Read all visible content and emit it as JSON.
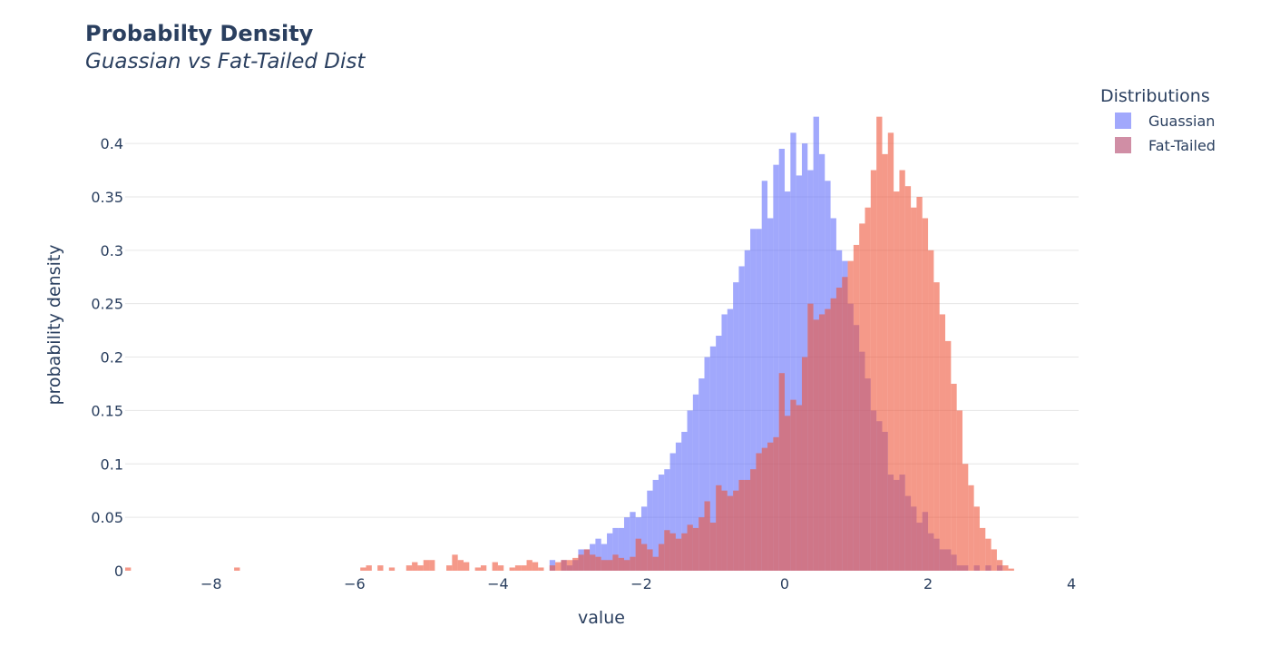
{
  "chart_data": {
    "type": "bar",
    "subtype": "overlaid-histogram",
    "title": "Probabilty Density",
    "subtitle": "Guassian vs Fat-Tailed Dist",
    "xlabel": "value",
    "ylabel": "probability density",
    "xlim": [
      -9.2,
      4.1
    ],
    "ylim": [
      0,
      0.44
    ],
    "grid": true,
    "bin_width": 0.08,
    "x_ticks": [
      -8,
      -6,
      -4,
      -2,
      0,
      2,
      4
    ],
    "x_tick_labels": [
      "−8",
      "−6",
      "−4",
      "−2",
      "0",
      "2",
      "4"
    ],
    "y_ticks": [
      0,
      0.05,
      0.1,
      0.15,
      0.2,
      0.25,
      0.3,
      0.35,
      0.4
    ],
    "y_tick_labels": [
      "0",
      "0.05",
      "0.1",
      "0.15",
      "0.2",
      "0.25",
      "0.3",
      "0.35",
      "0.4"
    ],
    "legend": {
      "title": "Distributions",
      "position": "top-right",
      "entries": [
        "Guassian",
        "Fat-Tailed"
      ]
    },
    "series": [
      {
        "name": "Guassian",
        "color": "#636efa",
        "opacity": 0.6,
        "x_start": -3.28,
        "values": [
          0.01,
          0.0,
          0.01,
          0.005,
          0.01,
          0.02,
          0.02,
          0.025,
          0.03,
          0.025,
          0.035,
          0.04,
          0.04,
          0.05,
          0.055,
          0.05,
          0.06,
          0.075,
          0.085,
          0.09,
          0.095,
          0.11,
          0.12,
          0.13,
          0.15,
          0.165,
          0.18,
          0.2,
          0.21,
          0.22,
          0.24,
          0.245,
          0.27,
          0.285,
          0.3,
          0.32,
          0.32,
          0.365,
          0.33,
          0.38,
          0.395,
          0.355,
          0.41,
          0.37,
          0.4,
          0.375,
          0.425,
          0.39,
          0.365,
          0.33,
          0.3,
          0.29,
          0.25,
          0.23,
          0.205,
          0.18,
          0.15,
          0.14,
          0.13,
          0.09,
          0.085,
          0.09,
          0.07,
          0.06,
          0.045,
          0.055,
          0.035,
          0.03,
          0.02,
          0.02,
          0.015,
          0.005,
          0.005,
          0.0,
          0.005,
          0.0,
          0.005,
          0.0,
          0.005
        ]
      },
      {
        "name": "Fat-Tailed",
        "color": "#ef553b",
        "opacity": 0.6,
        "x_start": -9.2,
        "values": [
          0.003,
          0.0,
          0.0,
          0.0,
          0.0,
          0.0,
          0.0,
          0.0,
          0.0,
          0.0,
          0.0,
          0.0,
          0.0,
          0.0,
          0.0,
          0.0,
          0.0,
          0.0,
          0.0,
          0.003,
          0.0,
          0.0,
          0.0,
          0.0,
          0.0,
          0.0,
          0.0,
          0.0,
          0.0,
          0.0,
          0.0,
          0.0,
          0.0,
          0.0,
          0.0,
          0.0,
          0.0,
          0.0,
          0.0,
          0.0,
          0.0,
          0.003,
          0.005,
          0.0,
          0.005,
          0.0,
          0.003,
          0.0,
          0.0,
          0.005,
          0.008,
          0.005,
          0.01,
          0.01,
          0.0,
          0.0,
          0.005,
          0.015,
          0.01,
          0.008,
          0.0,
          0.003,
          0.005,
          0.0,
          0.008,
          0.005,
          0.0,
          0.003,
          0.005,
          0.005,
          0.01,
          0.008,
          0.003,
          0.0,
          0.005,
          0.008,
          0.01,
          0.01,
          0.012,
          0.015,
          0.02,
          0.015,
          0.013,
          0.01,
          0.01,
          0.015,
          0.012,
          0.01,
          0.013,
          0.03,
          0.025,
          0.02,
          0.013,
          0.025,
          0.038,
          0.035,
          0.03,
          0.035,
          0.043,
          0.04,
          0.05,
          0.065,
          0.045,
          0.08,
          0.075,
          0.07,
          0.075,
          0.085,
          0.085,
          0.095,
          0.11,
          0.115,
          0.12,
          0.125,
          0.185,
          0.145,
          0.16,
          0.155,
          0.2,
          0.25,
          0.235,
          0.24,
          0.245,
          0.255,
          0.265,
          0.275,
          0.29,
          0.305,
          0.325,
          0.34,
          0.375,
          0.425,
          0.39,
          0.41,
          0.355,
          0.375,
          0.36,
          0.34,
          0.35,
          0.33,
          0.3,
          0.27,
          0.24,
          0.215,
          0.175,
          0.15,
          0.1,
          0.08,
          0.06,
          0.04,
          0.03,
          0.02,
          0.01,
          0.005,
          0.002
        ]
      }
    ]
  }
}
